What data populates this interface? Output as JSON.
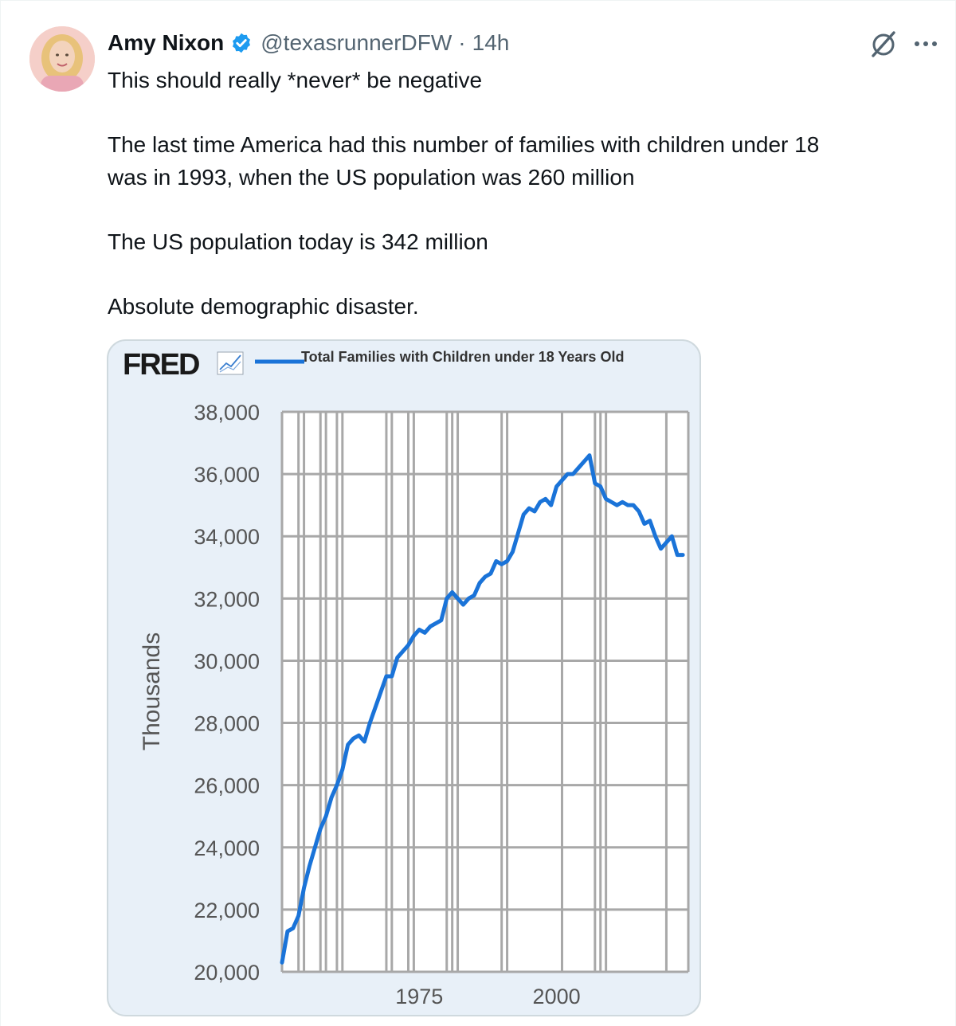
{
  "tweet": {
    "author_name": "Amy Nixon",
    "handle": "@texasrunnerDFW",
    "separator": "·",
    "time": "14h",
    "paragraphs": [
      "This should really *never* be negative",
      "",
      "The last time America had this number of families with children under 18",
      "was in 1993, when the US population was 260 million",
      "",
      "The US population today is 342 million",
      "",
      "Absolute demographic disaster."
    ]
  },
  "icons": {
    "verified": "verified-badge-icon",
    "grok": "grok-icon",
    "more": "more-icon"
  },
  "colors": {
    "verified_blue": "#1d9bf0",
    "line_blue": "#1a73d8",
    "chart_bg": "#e8f0f8",
    "grid": "#a8a8a8"
  },
  "chart_data": {
    "type": "line",
    "brand": "FRED",
    "title": "",
    "legend": "Total Families with Children under 18 Years Old",
    "ylabel": "Thousands",
    "xlabel": "",
    "ylim": [
      20000,
      38000
    ],
    "xlim": [
      1950,
      2024
    ],
    "yticks": [
      "20,000",
      "22,000",
      "24,000",
      "26,000",
      "28,000",
      "30,000",
      "32,000",
      "34,000",
      "36,000",
      "38,000"
    ],
    "ytick_values": [
      20000,
      22000,
      24000,
      26000,
      28000,
      30000,
      32000,
      34000,
      36000,
      38000
    ],
    "xticks": [
      "1975",
      "2000"
    ],
    "xtick_values": [
      1975,
      2000
    ],
    "grid_years": [
      1950,
      1953,
      1954,
      1957,
      1958,
      1960,
      1961,
      1969,
      1970,
      1973,
      1974,
      1980,
      1981,
      1982,
      1990,
      1991,
      2001,
      2007,
      2008,
      2009,
      2020,
      2024
    ],
    "series": [
      {
        "x": [
          1950,
          1951,
          1952,
          1953,
          1954,
          1955,
          1956,
          1957,
          1958,
          1959,
          1960,
          1961,
          1962,
          1963,
          1964,
          1965,
          1966,
          1967,
          1968,
          1969,
          1970,
          1971,
          1972,
          1973,
          1974,
          1975,
          1976,
          1977,
          1978,
          1979,
          1980,
          1981,
          1982,
          1983,
          1984,
          1985,
          1986,
          1987,
          1988,
          1989,
          1990,
          1991,
          1992,
          1993,
          1994,
          1995,
          1996,
          1997,
          1998,
          1999,
          2000,
          2001,
          2002,
          2003,
          2004,
          2005,
          2006,
          2007,
          2008,
          2009,
          2010,
          2011,
          2012,
          2013,
          2014,
          2015,
          2016,
          2017,
          2018,
          2019,
          2020,
          2021,
          2022,
          2023
        ],
        "values": [
          20300,
          21300,
          21400,
          21800,
          22700,
          23400,
          24000,
          24600,
          25000,
          25600,
          26000,
          26500,
          27300,
          27500,
          27600,
          27400,
          28000,
          28500,
          29000,
          29500,
          29500,
          30100,
          30300,
          30500,
          30800,
          31000,
          30900,
          31100,
          31200,
          31300,
          32000,
          32200,
          32000,
          31800,
          32000,
          32100,
          32500,
          32700,
          32800,
          33200,
          33100,
          33200,
          33500,
          34100,
          34700,
          34900,
          34800,
          35100,
          35200,
          35000,
          35600,
          35800,
          36000,
          36000,
          36200,
          36400,
          36600,
          35700,
          35600,
          35200,
          35100,
          35000,
          35100,
          35000,
          35000,
          34800,
          34400,
          34500,
          34000,
          33600,
          33800,
          34000,
          33400,
          33400
        ]
      }
    ]
  }
}
